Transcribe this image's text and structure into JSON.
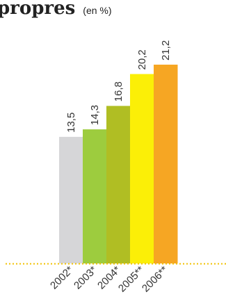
{
  "chart_data": {
    "type": "bar",
    "title": "propres",
    "title_unit": "(en %)",
    "categories": [
      "2002*",
      "2003*",
      "2004*",
      "2005**",
      "2006**"
    ],
    "values": [
      13.5,
      14.3,
      16.8,
      20.2,
      21.2
    ],
    "value_labels": [
      "13,5",
      "14,3",
      "16,8",
      "20,2",
      "21,2"
    ],
    "colors": [
      "#d6d6d8",
      "#9dcc3e",
      "#b0be23",
      "#fbef07",
      "#f6a623"
    ],
    "baseline_color": "#f2c200",
    "ylim": [
      0,
      21.2
    ],
    "xlabel": "",
    "ylabel": "",
    "grid": false,
    "legend": "none"
  }
}
